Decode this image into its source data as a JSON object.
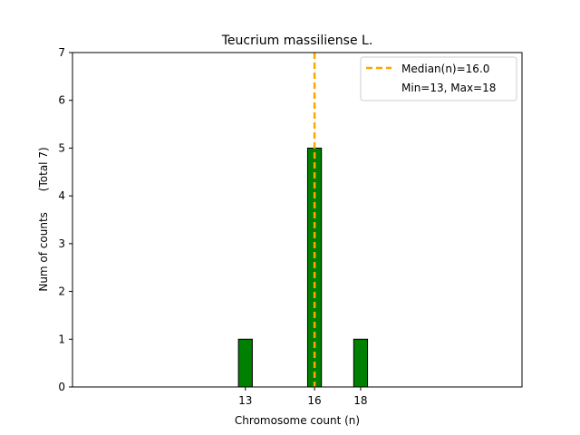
{
  "chart_data": {
    "type": "bar",
    "title": "Teucrium massiliense L.",
    "xlabel": "Chromosome count (n)",
    "ylabel": "Num of counts      (Total 7)",
    "x": [
      13,
      16,
      18
    ],
    "values": [
      1,
      5,
      1
    ],
    "x_ticks": [
      13,
      16,
      18
    ],
    "y_ticks": [
      0,
      1,
      2,
      3,
      4,
      5,
      6,
      7
    ],
    "xlim": [
      5.5,
      25.0
    ],
    "ylim": [
      0,
      7
    ],
    "baseline_range": [
      5.5,
      18.6
    ],
    "bar_width": 0.6,
    "bar_color": "#008000",
    "median": 16.0,
    "median_color": "#FFA500",
    "legend": {
      "position": "top-right",
      "entries": [
        "Median(n)=16.0",
        "Min=13, Max=18"
      ]
    },
    "grid": false
  }
}
